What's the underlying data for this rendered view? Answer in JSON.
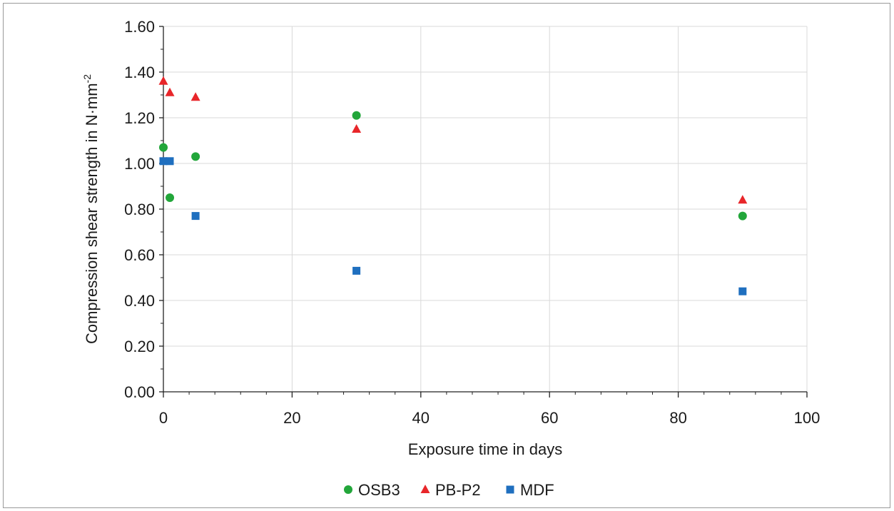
{
  "chart_data": {
    "type": "scatter",
    "title": "",
    "xlabel": "Exposure time in days",
    "ylabel_main": "Compression shear strength in N·mm",
    "ylabel_sup": "-2",
    "xlim": [
      0,
      100
    ],
    "ylim": [
      0,
      1.6
    ],
    "x_ticks": [
      "0",
      "20",
      "40",
      "60",
      "80",
      "100"
    ],
    "y_ticks": [
      "0.00",
      "0.20",
      "0.40",
      "0.60",
      "0.80",
      "1.00",
      "1.20",
      "1.40",
      "1.60"
    ],
    "grid": true,
    "legend_position": "bottom",
    "series": [
      {
        "name": "OSB3",
        "marker": "circle",
        "color": "#22a63a",
        "x": [
          0,
          1,
          5,
          30,
          90
        ],
        "y": [
          1.07,
          0.85,
          1.03,
          1.21,
          0.77
        ]
      },
      {
        "name": "PB-P2",
        "marker": "triangle",
        "color": "#e8262a",
        "x": [
          0,
          1,
          5,
          30,
          90
        ],
        "y": [
          1.36,
          1.31,
          1.29,
          1.15,
          0.84
        ]
      },
      {
        "name": "MDF",
        "marker": "square",
        "color": "#1f6fbf",
        "x": [
          0,
          1,
          30,
          5,
          90
        ],
        "y": [
          1.01,
          1.01,
          0.53,
          0.77,
          0.44
        ]
      }
    ]
  }
}
